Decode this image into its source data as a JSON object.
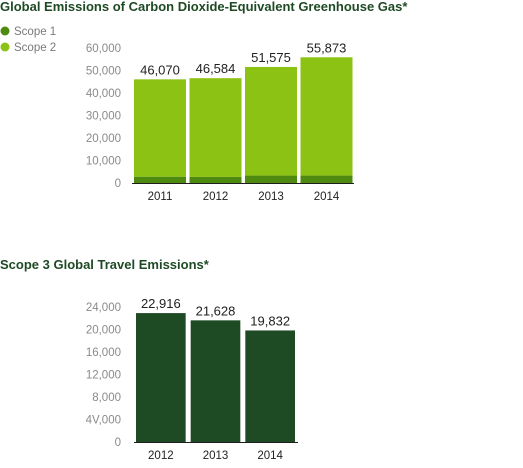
{
  "chart_data": [
    {
      "type": "bar",
      "stacked": true,
      "title": "Global Emissions of Carbon Dioxide-Equivalent Greenhouse Gas*",
      "categories": [
        "2011",
        "2012",
        "2013",
        "2014"
      ],
      "series": [
        {
          "name": "Scope 1",
          "color": "#4f8a10",
          "values": [
            2800,
            2700,
            3300,
            3300
          ]
        },
        {
          "name": "Scope 2",
          "color": "#8cc214",
          "values": [
            43270,
            43884,
            48275,
            52573
          ]
        }
      ],
      "totals": [
        "46,070",
        "46,584",
        "51,575",
        "55,873"
      ],
      "yticks": [
        "0",
        "10,000",
        "20,000",
        "30,000",
        "40,000",
        "50,000",
        "60,000"
      ],
      "ylim": [
        0,
        60000
      ],
      "legend": "top-left"
    },
    {
      "type": "bar",
      "title": "Scope 3 Global Travel Emissions*",
      "categories": [
        "2012",
        "2013",
        "2014"
      ],
      "values": [
        22916,
        21628,
        19832
      ],
      "labels": [
        "22,916",
        "21,628",
        "19,832"
      ],
      "color": "#1e4a24",
      "yticks": [
        "0",
        "4V,000",
        "8,000",
        "12,000",
        "16,000",
        "20,000",
        "24,000"
      ],
      "ylim": [
        0,
        24000
      ]
    }
  ]
}
